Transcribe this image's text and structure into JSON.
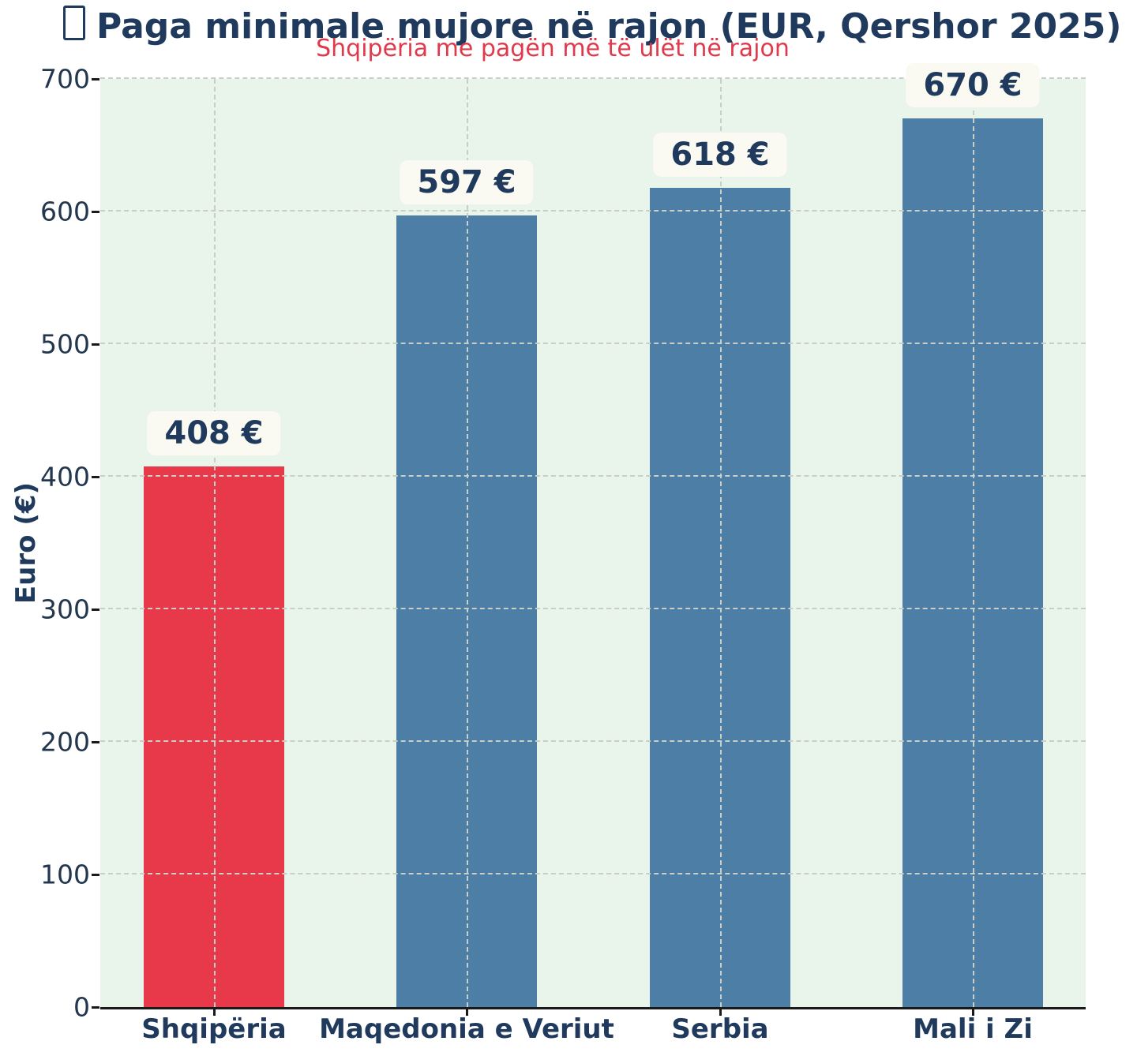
{
  "title": {
    "icon": "missing-glyph",
    "text": "Paga minimale mujore në rajon (EUR, Qershor 2025)"
  },
  "subtitle": "Shqipëria me pagën më të ulët në rajon",
  "chart_data": {
    "type": "bar",
    "title": "Paga minimale mujore në rajon (EUR, Qershor 2025)",
    "subtitle": "Shqipëria me pagën më të ulët në rajon",
    "categories": [
      "Shqipëria",
      "Maqedonia e Veriut",
      "Serbia",
      "Mali i Zi"
    ],
    "values": [
      408,
      597,
      618,
      670
    ],
    "value_labels": [
      "408 €",
      "597 €",
      "618 €",
      "670 €"
    ],
    "xlabel": "",
    "ylabel": "Euro (€)",
    "ylim": [
      0,
      700
    ],
    "yticks": [
      0,
      100,
      200,
      300,
      400,
      500,
      600,
      700
    ],
    "grid": "dashed horizontal and vertical gridlines over bars",
    "legend": "none",
    "highlight_index": 0,
    "bar_colors": [
      "#e8394a",
      "#4d7ea5",
      "#4d7ea5",
      "#4d7ea5"
    ]
  },
  "colors": {
    "title_text": "#1f3a5c",
    "subtitle_text": "#e0394b",
    "bar_highlight": "#e8394a",
    "bar_default": "#4d7ea5",
    "plot_background": "#e9f4eb",
    "figure_background": "#ffffff",
    "gridline": "#c8cec8",
    "value_box_background": "#fafaf2",
    "axis_spine": "#1a1a1a",
    "tick_label": "#22364d"
  }
}
